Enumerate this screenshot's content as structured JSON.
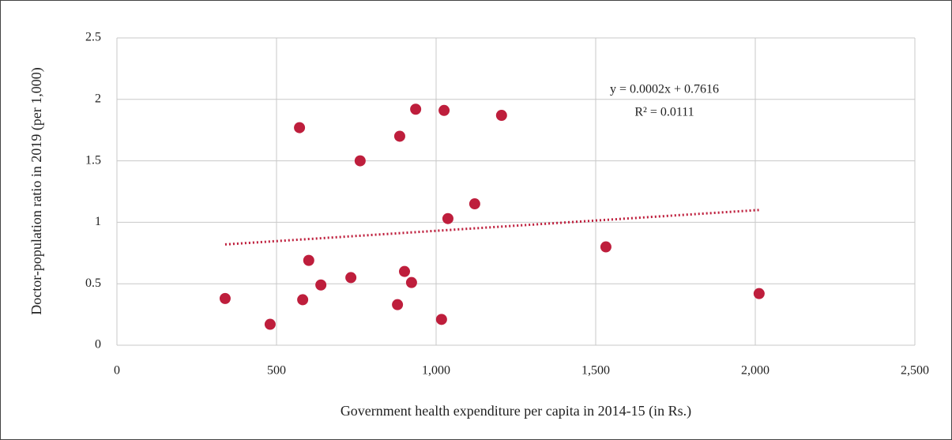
{
  "chart_data": {
    "type": "scatter",
    "x_label": "Government health expenditure per capita  in 2014-15 (in Rs.)",
    "y_label": "Doctor-population ratio in 2019 (per 1,000)",
    "color": "#be1e3c",
    "x": [
      339,
      480,
      572,
      582,
      601,
      639,
      733,
      762,
      879,
      886,
      901,
      923,
      936,
      1017,
      1025,
      1037,
      1121,
      1205,
      1532,
      2012
    ],
    "values": [
      0.38,
      0.17,
      1.77,
      0.37,
      0.69,
      0.49,
      0.55,
      1.5,
      0.33,
      1.7,
      0.6,
      0.51,
      1.92,
      0.21,
      1.91,
      1.03,
      1.15,
      1.87,
      0.8,
      0.42
    ],
    "trendline": {
      "x": [
        339,
        2012
      ],
      "y": [
        0.82,
        1.1
      ],
      "equation": "y = 0.0002x + 0.7616",
      "r_squared": "R² = 0.0111"
    },
    "xlim": [
      0,
      2500
    ],
    "xticks": [
      0,
      500,
      {
        "value": 1000,
        "label": "1,000"
      },
      {
        "value": 1500,
        "label": "1,500"
      },
      {
        "value": 2000,
        "label": "2,000"
      },
      {
        "value": 2500,
        "label": "2,500"
      }
    ],
    "ylim": [
      0,
      2.5
    ],
    "yticks": [
      0,
      0.5,
      1,
      1.5,
      2,
      2.5
    ],
    "grid": true
  }
}
